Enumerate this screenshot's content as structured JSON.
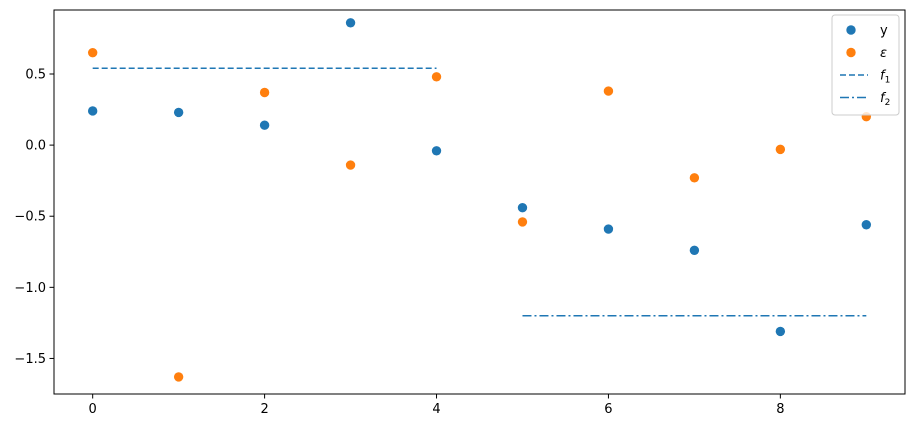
{
  "chart_data": {
    "type": "scatter",
    "title": "",
    "xlabel": "",
    "ylabel": "",
    "xlim": [
      -0.45,
      9.45
    ],
    "ylim": [
      -1.75,
      0.95
    ],
    "xticks": [
      0,
      2,
      4,
      6,
      8
    ],
    "yticks": [
      -1.5,
      -1.0,
      -0.5,
      0.0,
      0.5
    ],
    "xtick_labels": [
      "0",
      "2",
      "4",
      "6",
      "8"
    ],
    "ytick_labels": [
      "−1.5",
      "−1.0",
      "−0.5",
      "0.0",
      "0.5"
    ],
    "grid": false,
    "legend": "top-right",
    "scatter_series": [
      {
        "name": "y",
        "color": "#1f77b4",
        "x": [
          0,
          1,
          2,
          3,
          4,
          5,
          6,
          7,
          8,
          9
        ],
        "y": [
          0.24,
          0.23,
          0.14,
          0.86,
          -0.04,
          -0.44,
          -0.59,
          -0.74,
          -1.31,
          -0.56
        ]
      },
      {
        "name": "ε",
        "color": "#ff7f0e",
        "x": [
          0,
          1,
          2,
          3,
          4,
          5,
          6,
          7,
          8,
          9
        ],
        "y": [
          0.65,
          -1.63,
          0.37,
          -0.14,
          0.48,
          -0.54,
          0.38,
          -0.23,
          -0.03,
          0.2
        ]
      }
    ],
    "line_series": [
      {
        "name": "f",
        "subscript": "1",
        "color": "#1f77b4",
        "style": "dashed",
        "x": [
          0,
          4
        ],
        "y": [
          0.54,
          0.54
        ]
      },
      {
        "name": "f",
        "subscript": "2",
        "color": "#1f77b4",
        "style": "dashdot",
        "x": [
          5,
          9
        ],
        "y": [
          -1.2,
          -1.2
        ]
      }
    ]
  }
}
